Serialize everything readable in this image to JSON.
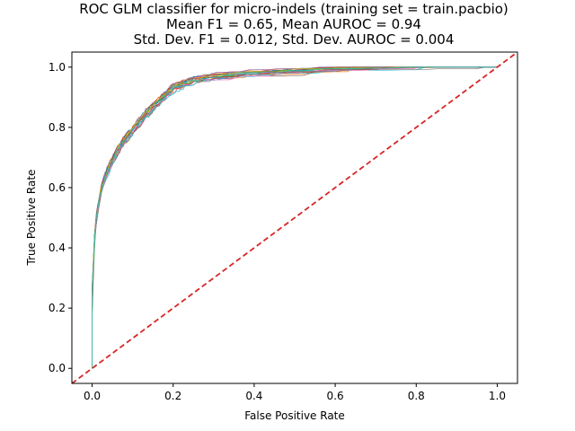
{
  "chart_data": {
    "type": "line",
    "title_lines": [
      "ROC GLM classifier for micro-indels (training set = train.pacbio)",
      "Mean F1 = 0.65, Mean AUROC = 0.94",
      "Std. Dev. F1 = 0.012, Std. Dev. AUROC = 0.004"
    ],
    "xlabel": "False Positive Rate",
    "ylabel": "True Positive Rate",
    "xlim": [
      -0.05,
      1.05
    ],
    "ylim": [
      -0.05,
      1.05
    ],
    "xticks": [
      0.0,
      0.2,
      0.4,
      0.6,
      0.8,
      1.0
    ],
    "yticks": [
      0.0,
      0.2,
      0.4,
      0.6,
      0.8,
      1.0
    ],
    "tick_labels": [
      "0.0",
      "0.2",
      "0.4",
      "0.6",
      "0.8",
      "1.0"
    ],
    "grid": false,
    "legend": "none",
    "fold_colors": [
      "#1f77b4",
      "#ff7f0e",
      "#2ca02c",
      "#d62728",
      "#9467bd",
      "#8c564b",
      "#e377c2",
      "#7f7f7f",
      "#bcbd22",
      "#17becf",
      "#1f77b4",
      "#ff7f0e",
      "#2ca02c",
      "#d62728",
      "#9467bd",
      "#8c564b",
      "#e377c2",
      "#7f7f7f",
      "#bcbd22",
      "#17becf"
    ],
    "mean_curve": {
      "x": [
        0.0,
        0.002,
        0.005,
        0.01,
        0.02,
        0.03,
        0.05,
        0.07,
        0.1,
        0.13,
        0.16,
        0.2,
        0.25,
        0.3,
        0.4,
        0.5,
        0.6,
        0.7,
        0.8,
        0.9,
        1.0
      ],
      "y": [
        0.0,
        0.3,
        0.42,
        0.5,
        0.58,
        0.63,
        0.69,
        0.74,
        0.79,
        0.84,
        0.88,
        0.93,
        0.955,
        0.965,
        0.977,
        0.984,
        0.989,
        0.993,
        0.996,
        0.999,
        1.0
      ]
    },
    "diagonal": {
      "x": [
        -0.05,
        1.05
      ],
      "y": [
        -0.05,
        1.05
      ],
      "color": "#d62728",
      "style": "dashed"
    }
  }
}
